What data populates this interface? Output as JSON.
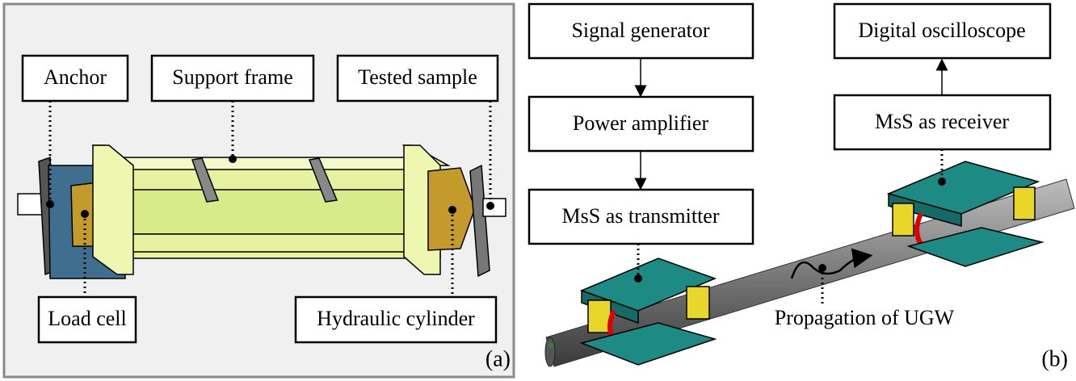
{
  "panels": [
    {
      "label": "(a)",
      "callouts": [
        "Anchor",
        "Support frame",
        "Tested sample",
        "Load cell",
        "Hydraulic cylinder"
      ]
    },
    {
      "label": "(b)",
      "boxes": [
        "Signal generator",
        "Power amplifier",
        "MsS as transmitter",
        "Digital oscilloscope",
        "MsS as receiver"
      ],
      "annotation": "Propagation of UGW"
    }
  ]
}
